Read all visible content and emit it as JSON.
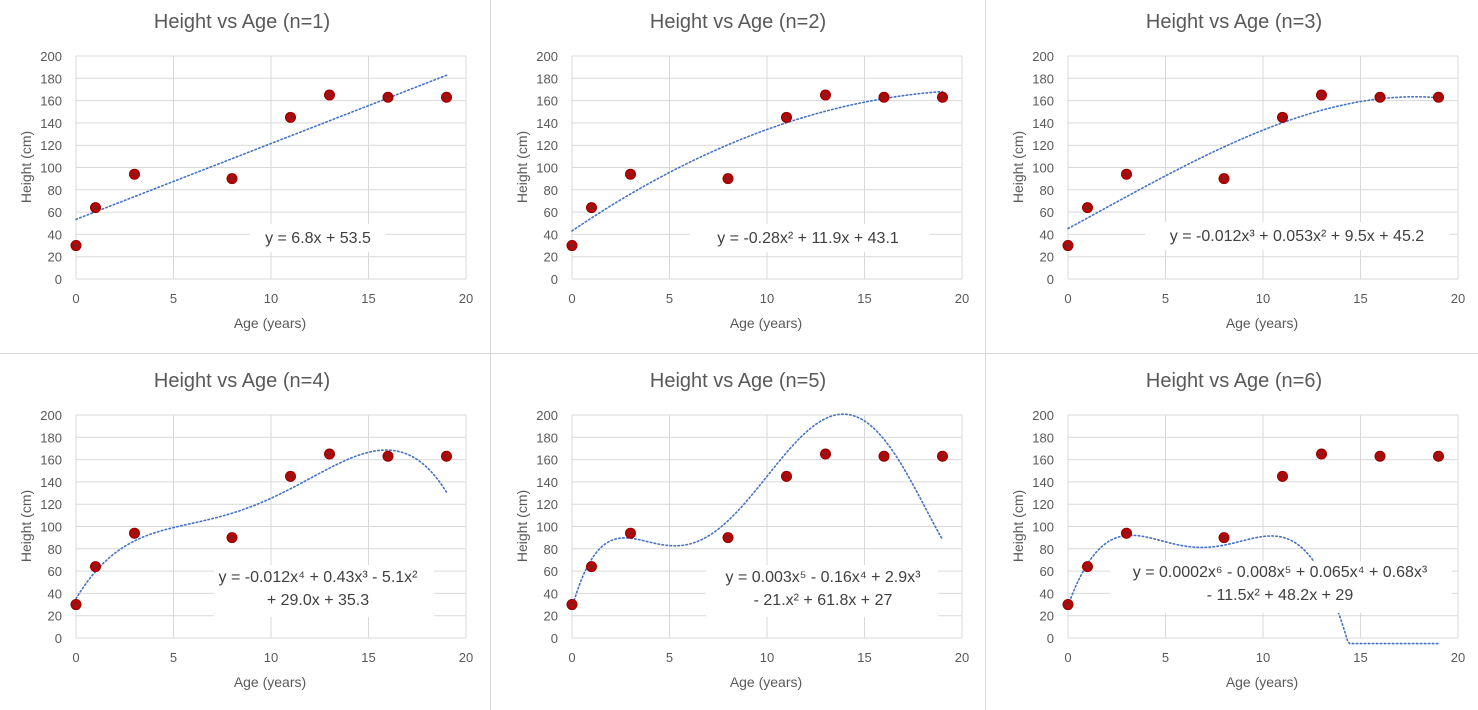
{
  "chart_data": [
    {
      "type": "scatter",
      "title": "Height vs Age (n=1)",
      "xlabel": "Age (years)",
      "ylabel": "Height (cm)",
      "xlim": [
        0,
        20
      ],
      "ylim": [
        0,
        200
      ],
      "xticks": [
        0,
        5,
        10,
        15,
        20
      ],
      "yticks": [
        0,
        20,
        40,
        60,
        80,
        100,
        120,
        140,
        160,
        180,
        200
      ],
      "grid": true,
      "x": [
        0,
        1,
        3,
        8,
        11,
        13,
        16,
        19
      ],
      "y": [
        30,
        64,
        94,
        90,
        145,
        165,
        163,
        163
      ],
      "marker_color": "#c00000",
      "trendline": {
        "degree": 1,
        "color": "#4472c4",
        "style": "dotted",
        "coefficients_high_to_low": [
          6.8,
          53.5
        ],
        "equation_lines": [
          "y = 6.8x + 53.5"
        ]
      }
    },
    {
      "type": "scatter",
      "title": "Height vs Age (n=2)",
      "xlabel": "Age (years)",
      "ylabel": "Height (cm)",
      "xlim": [
        0,
        20
      ],
      "ylim": [
        0,
        200
      ],
      "xticks": [
        0,
        5,
        10,
        15,
        20
      ],
      "yticks": [
        0,
        20,
        40,
        60,
        80,
        100,
        120,
        140,
        160,
        180,
        200
      ],
      "grid": true,
      "x": [
        0,
        1,
        3,
        8,
        11,
        13,
        16,
        19
      ],
      "y": [
        30,
        64,
        94,
        90,
        145,
        165,
        163,
        163
      ],
      "marker_color": "#c00000",
      "trendline": {
        "degree": 2,
        "color": "#4472c4",
        "style": "dotted",
        "coefficients_high_to_low": [
          -0.28,
          11.9,
          43.1
        ],
        "equation_lines": [
          "y = -0.28x² + 11.9x + 43.1"
        ]
      }
    },
    {
      "type": "scatter",
      "title": "Height vs Age (n=3)",
      "xlabel": "Age (years)",
      "ylabel": "Height (cm)",
      "xlim": [
        0,
        20
      ],
      "ylim": [
        0,
        200
      ],
      "xticks": [
        0,
        5,
        10,
        15,
        20
      ],
      "yticks": [
        0,
        20,
        40,
        60,
        80,
        100,
        120,
        140,
        160,
        180,
        200
      ],
      "grid": true,
      "x": [
        0,
        1,
        3,
        8,
        11,
        13,
        16,
        19
      ],
      "y": [
        30,
        64,
        94,
        90,
        145,
        165,
        163,
        163
      ],
      "marker_color": "#c00000",
      "trendline": {
        "degree": 3,
        "color": "#4472c4",
        "style": "dotted",
        "coefficients_high_to_low": [
          -0.012,
          0.053,
          9.5,
          45.2
        ],
        "equation_lines": [
          "y = -0.012x³ + 0.053x² + 9.5x + 45.2"
        ]
      }
    },
    {
      "type": "scatter",
      "title": "Height vs Age (n=4)",
      "xlabel": "Age (years)",
      "ylabel": "Height (cm)",
      "xlim": [
        0,
        20
      ],
      "ylim": [
        0,
        200
      ],
      "xticks": [
        0,
        5,
        10,
        15,
        20
      ],
      "yticks": [
        0,
        20,
        40,
        60,
        80,
        100,
        120,
        140,
        160,
        180,
        200
      ],
      "grid": true,
      "x": [
        0,
        1,
        3,
        8,
        11,
        13,
        16,
        19
      ],
      "y": [
        30,
        64,
        94,
        90,
        145,
        165,
        163,
        163
      ],
      "marker_color": "#c00000",
      "trendline": {
        "degree": 4,
        "color": "#4472c4",
        "style": "dotted",
        "coefficients_high_to_low": [
          -0.012,
          0.43,
          -5.1,
          29.0,
          35.3
        ],
        "equation_lines": [
          "y = -0.012x⁴ + 0.43x³ - 5.1x²",
          "+ 29.0x + 35.3"
        ]
      }
    },
    {
      "type": "scatter",
      "title": "Height vs Age (n=5)",
      "xlabel": "Age (years)",
      "ylabel": "Height (cm)",
      "xlim": [
        0,
        20
      ],
      "ylim": [
        0,
        200
      ],
      "xticks": [
        0,
        5,
        10,
        15,
        20
      ],
      "yticks": [
        0,
        20,
        40,
        60,
        80,
        100,
        120,
        140,
        160,
        180,
        200
      ],
      "grid": true,
      "x": [
        0,
        1,
        3,
        8,
        11,
        13,
        16,
        19
      ],
      "y": [
        30,
        64,
        94,
        90,
        145,
        165,
        163,
        163
      ],
      "marker_color": "#c00000",
      "trendline": {
        "degree": 5,
        "color": "#4472c4",
        "style": "dotted",
        "coefficients_high_to_low": [
          0.003,
          -0.16,
          2.9,
          -21.0,
          61.8,
          27
        ],
        "equation_lines": [
          "y = 0.003x⁵ - 0.16x⁴ + 2.9x³",
          "- 21.x² + 61.8x + 27"
        ]
      }
    },
    {
      "type": "scatter",
      "title": "Height vs Age (n=6)",
      "xlabel": "Age (years)",
      "ylabel": "Height (cm)",
      "xlim": [
        0,
        20
      ],
      "ylim": [
        0,
        200
      ],
      "xticks": [
        0,
        5,
        10,
        15,
        20
      ],
      "yticks": [
        0,
        20,
        40,
        60,
        80,
        100,
        120,
        140,
        160,
        180,
        200
      ],
      "grid": true,
      "x": [
        0,
        1,
        3,
        8,
        11,
        13,
        16,
        19
      ],
      "y": [
        30,
        64,
        94,
        90,
        145,
        165,
        163,
        163
      ],
      "marker_color": "#c00000",
      "trendline": {
        "degree": 6,
        "color": "#4472c4",
        "style": "dotted",
        "coefficients_high_to_low": [
          0.0002,
          -0.008,
          0.065,
          0.68,
          -11.5,
          48.2,
          29
        ],
        "equation_lines": [
          "y = 0.0002x⁶ - 0.008x⁵ + 0.065x⁴ + 0.68x³",
          "- 11.5x² + 48.2x + 29"
        ]
      }
    }
  ]
}
